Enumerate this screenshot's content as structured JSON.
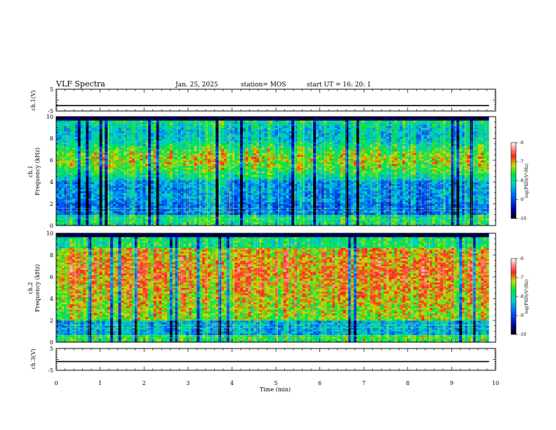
{
  "header": {
    "title": "VLF Spectra",
    "date": "Jan. 25, 2025",
    "station": "station= MOS",
    "start": "start UT =  16: 20: 1"
  },
  "chart_data": [
    {
      "type": "line",
      "panel": "ch1-voltage",
      "ylabel": "ch.1(V)",
      "ylim": [
        -5,
        5
      ],
      "yticks": [
        "5",
        "-5"
      ],
      "x": [
        0,
        9.85
      ],
      "y": [
        -2.5,
        -2.5
      ]
    },
    {
      "type": "heatmap",
      "panel": "ch1-spectrogram",
      "ylabel": "ch.1\nFrequency (kHz)",
      "ylabel_lines": [
        "ch.1",
        "Frequency (kHz)"
      ],
      "ylim": [
        0,
        10
      ],
      "yticks": [
        "0",
        "2",
        "4",
        "6",
        "8",
        "10"
      ],
      "data_xlim": [
        0,
        9.85
      ],
      "colorbar": {
        "label": "log(PSD)(V²/Hz)",
        "range": [
          -10,
          -6
        ],
        "ticks": [
          "-6",
          "-7",
          "-8",
          "-9",
          "-10"
        ]
      }
    },
    {
      "type": "heatmap",
      "panel": "ch2-spectrogram",
      "ylabel": "ch.2\nFrequency (kHz)",
      "ylabel_lines": [
        "ch.2",
        "Frequency (kHz)"
      ],
      "ylim": [
        0,
        10
      ],
      "yticks": [
        "0",
        "2",
        "4",
        "6",
        "8",
        "10"
      ],
      "data_xlim": [
        0,
        9.85
      ],
      "colorbar": {
        "label": "log(PSD)(V²/Hz)",
        "range": [
          -10,
          -6
        ],
        "ticks": [
          "-6",
          "-7",
          "-8",
          "-9",
          "-10"
        ]
      }
    },
    {
      "type": "line",
      "panel": "ch3-voltage",
      "ylabel": "ch.3(V)",
      "ylim": [
        -5,
        5
      ],
      "yticks": [
        "5",
        "-5"
      ],
      "x": [
        0,
        9.85
      ],
      "y": [
        -1.0,
        -1.0
      ]
    }
  ],
  "xaxis": {
    "label": "Time (min)",
    "range": [
      0,
      10
    ],
    "ticks": [
      "0",
      "1",
      "2",
      "3",
      "4",
      "5",
      "6",
      "7",
      "8",
      "9",
      "10"
    ]
  }
}
